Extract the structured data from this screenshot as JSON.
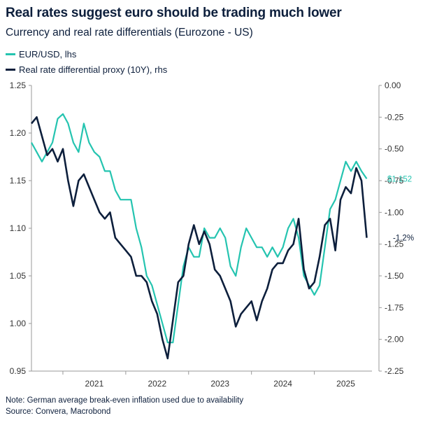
{
  "header": {
    "title": "Real rates suggest euro should be trading much lower",
    "subtitle": "Currency and real rate differentials (Eurozone - US)"
  },
  "notes": {
    "note": "Note: German average break-even inflation used due to availability",
    "source": "Source: Convera, Macrobond"
  },
  "end_labels": {
    "eurusd": "$1.152",
    "real_rate": "-1.2%"
  },
  "colors": {
    "eurusd": "#25c4b0",
    "real_rate": "#0d1f3c",
    "axis": "#999999"
  },
  "chart_data": {
    "type": "line",
    "title": "Real rates suggest euro should be trading much lower",
    "subtitle": "Currency and real rate differentials (Eurozone - US)",
    "x_ticks": [
      "2021",
      "2022",
      "2023",
      "2024",
      "2025"
    ],
    "left_axis": {
      "label": "",
      "range": [
        0.95,
        1.25
      ],
      "ticks": [
        "1.25",
        "1.20",
        "1.15",
        "1.10",
        "1.05",
        "1.00",
        "0.95"
      ]
    },
    "right_axis": {
      "label": "",
      "range": [
        -2.25,
        0.0
      ],
      "ticks": [
        "0.00",
        "-0.25",
        "-0.50",
        "-0.75",
        "-1.00",
        "-1.25",
        "-1.50",
        "-1.75",
        "-2.00",
        "-2.25"
      ]
    },
    "x_range": [
      "2020-07",
      "2025-12"
    ],
    "legend_position": "top-left",
    "series": [
      {
        "name": "EUR/USD, lhs",
        "axis": "left",
        "x": [
          "2020-07",
          "2020-08",
          "2020-09",
          "2020-10",
          "2020-11",
          "2020-12",
          "2021-01",
          "2021-02",
          "2021-03",
          "2021-04",
          "2021-05",
          "2021-06",
          "2021-07",
          "2021-08",
          "2021-09",
          "2021-10",
          "2021-11",
          "2021-12",
          "2022-01",
          "2022-02",
          "2022-03",
          "2022-04",
          "2022-05",
          "2022-06",
          "2022-07",
          "2022-08",
          "2022-09",
          "2022-10",
          "2022-11",
          "2022-12",
          "2023-01",
          "2023-02",
          "2023-03",
          "2023-04",
          "2023-05",
          "2023-06",
          "2023-07",
          "2023-08",
          "2023-09",
          "2023-10",
          "2023-11",
          "2023-12",
          "2024-01",
          "2024-02",
          "2024-03",
          "2024-04",
          "2024-05",
          "2024-06",
          "2024-07",
          "2024-08",
          "2024-09",
          "2024-10",
          "2024-11",
          "2024-12",
          "2025-01",
          "2025-02",
          "2025-03",
          "2025-04",
          "2025-05",
          "2025-06",
          "2025-07",
          "2025-08",
          "2025-09",
          "2025-10",
          "2025-11"
        ],
        "values": [
          1.19,
          1.18,
          1.17,
          1.18,
          1.19,
          1.215,
          1.22,
          1.21,
          1.19,
          1.18,
          1.21,
          1.19,
          1.18,
          1.175,
          1.16,
          1.16,
          1.14,
          1.13,
          1.13,
          1.13,
          1.1,
          1.08,
          1.05,
          1.04,
          1.02,
          1.0,
          0.98,
          0.98,
          1.02,
          1.06,
          1.08,
          1.07,
          1.07,
          1.1,
          1.09,
          1.09,
          1.1,
          1.09,
          1.06,
          1.05,
          1.08,
          1.1,
          1.09,
          1.08,
          1.08,
          1.07,
          1.08,
          1.07,
          1.08,
          1.1,
          1.11,
          1.09,
          1.05,
          1.04,
          1.03,
          1.04,
          1.08,
          1.12,
          1.13,
          1.15,
          1.17,
          1.16,
          1.17,
          1.16,
          1.152
        ]
      },
      {
        "name": "Real rate differential proxy (10Y), rhs",
        "axis": "right",
        "x": [
          "2020-07",
          "2020-08",
          "2020-09",
          "2020-10",
          "2020-11",
          "2020-12",
          "2021-01",
          "2021-02",
          "2021-03",
          "2021-04",
          "2021-05",
          "2021-06",
          "2021-07",
          "2021-08",
          "2021-09",
          "2021-10",
          "2021-11",
          "2021-12",
          "2022-01",
          "2022-02",
          "2022-03",
          "2022-04",
          "2022-05",
          "2022-06",
          "2022-07",
          "2022-08",
          "2022-09",
          "2022-10",
          "2022-11",
          "2022-12",
          "2023-01",
          "2023-02",
          "2023-03",
          "2023-04",
          "2023-05",
          "2023-06",
          "2023-07",
          "2023-08",
          "2023-09",
          "2023-10",
          "2023-11",
          "2023-12",
          "2024-01",
          "2024-02",
          "2024-03",
          "2024-04",
          "2024-05",
          "2024-06",
          "2024-07",
          "2024-08",
          "2024-09",
          "2024-10",
          "2024-11",
          "2024-12",
          "2025-01",
          "2025-02",
          "2025-03",
          "2025-04",
          "2025-05",
          "2025-06",
          "2025-07",
          "2025-08",
          "2025-09",
          "2025-10",
          "2025-11"
        ],
        "values": [
          -0.3,
          -0.25,
          -0.4,
          -0.55,
          -0.5,
          -0.6,
          -0.5,
          -0.75,
          -0.95,
          -0.75,
          -0.7,
          -0.8,
          -0.9,
          -1.0,
          -1.05,
          -1.0,
          -1.2,
          -1.25,
          -1.3,
          -1.35,
          -1.5,
          -1.5,
          -1.55,
          -1.7,
          -1.8,
          -2.0,
          -2.15,
          -1.85,
          -1.55,
          -1.5,
          -1.25,
          -1.1,
          -1.25,
          -1.15,
          -1.25,
          -1.45,
          -1.5,
          -1.6,
          -1.7,
          -1.9,
          -1.8,
          -1.75,
          -1.7,
          -1.85,
          -1.7,
          -1.6,
          -1.45,
          -1.4,
          -1.4,
          -1.3,
          -1.25,
          -1.05,
          -1.45,
          -1.6,
          -1.55,
          -1.35,
          -1.1,
          -1.05,
          -1.3,
          -0.9,
          -0.8,
          -0.85,
          -0.65,
          -0.75,
          -1.2
        ]
      }
    ]
  }
}
